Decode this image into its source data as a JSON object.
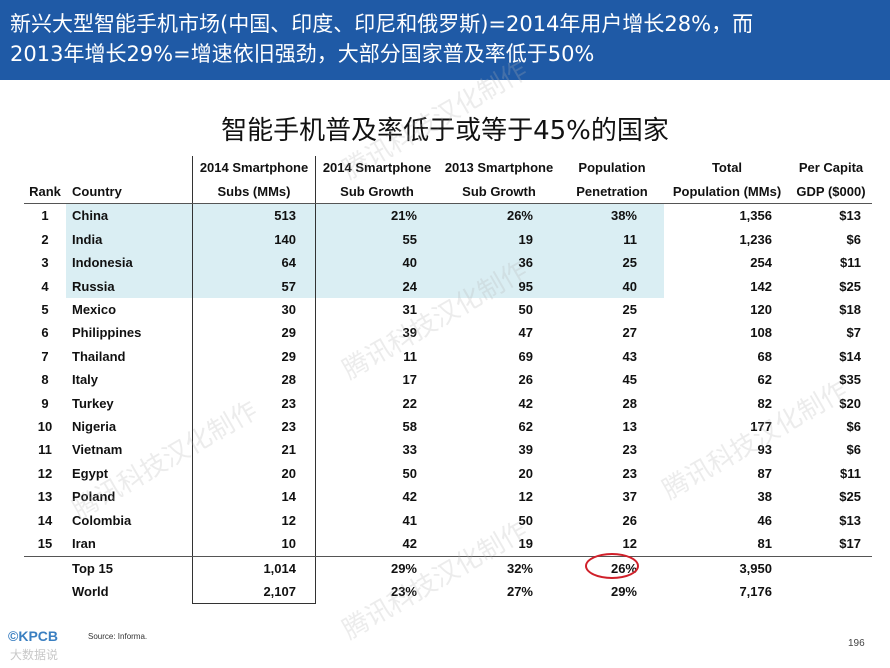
{
  "header": {
    "line1": "新兴大型智能手机市场(中国、印度、印尼和俄罗斯)=2014年用户增长28%，而",
    "line2": "2013年增长29%=增速依旧强劲，大部分国家普及率低于50%"
  },
  "title": "智能手机普及率低于或等于45%的国家",
  "columns": {
    "rank": "Rank",
    "country": "Country",
    "subs_top": "2014 Smartphone",
    "subs_bottom": "Subs (MMs)",
    "g14_top": "2014 Smartphone",
    "g14_bottom": "Sub Growth",
    "g13_top": "2013 Smartphone",
    "g13_bottom": "Sub Growth",
    "pen_top": "Population",
    "pen_bottom": "Penetration",
    "pop_top": "Total",
    "pop_bottom": "Population (MMs)",
    "gdp_top": "Per Capita",
    "gdp_bottom": "GDP ($000)"
  },
  "rows": [
    {
      "rank": "1",
      "country": "China",
      "subs": "513",
      "g14": "21%",
      "g13": "26%",
      "pen": "38%",
      "pop": "1,356",
      "gdp": "$13"
    },
    {
      "rank": "2",
      "country": "India",
      "subs": "140",
      "g14": "55",
      "g13": "19",
      "pen": "11",
      "pop": "1,236",
      "gdp": "$6"
    },
    {
      "rank": "3",
      "country": "Indonesia",
      "subs": "64",
      "g14": "40",
      "g13": "36",
      "pen": "25",
      "pop": "254",
      "gdp": "$11"
    },
    {
      "rank": "4",
      "country": "Russia",
      "subs": "57",
      "g14": "24",
      "g13": "95",
      "pen": "40",
      "pop": "142",
      "gdp": "$25"
    },
    {
      "rank": "5",
      "country": "Mexico",
      "subs": "30",
      "g14": "31",
      "g13": "50",
      "pen": "25",
      "pop": "120",
      "gdp": "$18"
    },
    {
      "rank": "6",
      "country": "Philippines",
      "subs": "29",
      "g14": "39",
      "g13": "47",
      "pen": "27",
      "pop": "108",
      "gdp": "$7"
    },
    {
      "rank": "7",
      "country": "Thailand",
      "subs": "29",
      "g14": "11",
      "g13": "69",
      "pen": "43",
      "pop": "68",
      "gdp": "$14"
    },
    {
      "rank": "8",
      "country": "Italy",
      "subs": "28",
      "g14": "17",
      "g13": "26",
      "pen": "45",
      "pop": "62",
      "gdp": "$35"
    },
    {
      "rank": "9",
      "country": "Turkey",
      "subs": "23",
      "g14": "22",
      "g13": "42",
      "pen": "28",
      "pop": "82",
      "gdp": "$20"
    },
    {
      "rank": "10",
      "country": "Nigeria",
      "subs": "23",
      "g14": "58",
      "g13": "62",
      "pen": "13",
      "pop": "177",
      "gdp": "$6"
    },
    {
      "rank": "11",
      "country": "Vietnam",
      "subs": "21",
      "g14": "33",
      "g13": "39",
      "pen": "23",
      "pop": "93",
      "gdp": "$6"
    },
    {
      "rank": "12",
      "country": "Egypt",
      "subs": "20",
      "g14": "50",
      "g13": "20",
      "pen": "23",
      "pop": "87",
      "gdp": "$11"
    },
    {
      "rank": "13",
      "country": "Poland",
      "subs": "14",
      "g14": "42",
      "g13": "12",
      "pen": "37",
      "pop": "38",
      "gdp": "$25"
    },
    {
      "rank": "14",
      "country": "Colombia",
      "subs": "12",
      "g14": "41",
      "g13": "50",
      "pen": "26",
      "pop": "46",
      "gdp": "$13"
    },
    {
      "rank": "15",
      "country": "Iran",
      "subs": "10",
      "g14": "42",
      "g13": "19",
      "pen": "12",
      "pop": "81",
      "gdp": "$17"
    }
  ],
  "totals": [
    {
      "label": "Top 15",
      "subs": "1,014",
      "g14": "29%",
      "g13": "32%",
      "pen": "26%",
      "pop": "3,950"
    },
    {
      "label": "World",
      "subs": "2,107",
      "g14": "23%",
      "g13": "27%",
      "pen": "29%",
      "pop": "7,176"
    }
  ],
  "highlight_color": "#daeef3",
  "circle_color": "#d0202a",
  "footer": {
    "source": "Source: Informa.",
    "page": "196",
    "logo": "KPCB",
    "logo_sub": "大数据说"
  },
  "watermark": "腾讯科技汉化制作"
}
